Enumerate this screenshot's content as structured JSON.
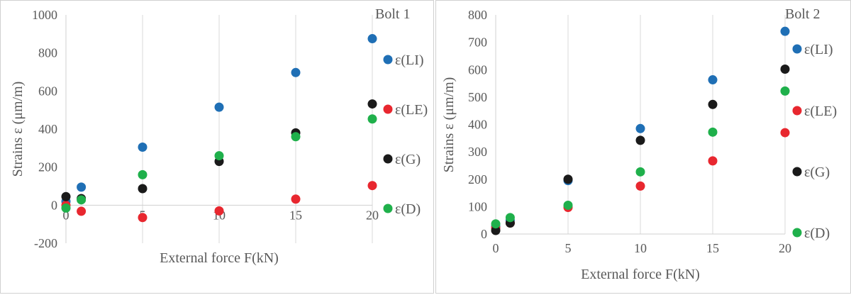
{
  "chart_data": [
    {
      "type": "scatter",
      "title": "Bolt 1",
      "xlabel": "External force F(kN)",
      "ylabel": "Strains ε (μm/m)",
      "x_ticks": [
        0,
        5,
        10,
        15,
        20
      ],
      "y_ticks": [
        -200,
        0,
        200,
        400,
        600,
        800,
        1000
      ],
      "xlim": [
        0,
        20
      ],
      "ylim": [
        -200,
        1000
      ],
      "grid": "vertical",
      "legend_position": "right",
      "series": [
        {
          "name": "ε(LI)",
          "color": "#1f6fb5",
          "points": [
            [
              0,
              20
            ],
            [
              1,
              95
            ],
            [
              5,
              305
            ],
            [
              10,
              515
            ],
            [
              15,
              697
            ],
            [
              20,
              875
            ]
          ]
        },
        {
          "name": "ε(LE)",
          "color": "#e8272f",
          "points": [
            [
              0,
              0
            ],
            [
              1,
              -32
            ],
            [
              5,
              -65
            ],
            [
              10,
              -30
            ],
            [
              15,
              32
            ],
            [
              20,
              103
            ]
          ]
        },
        {
          "name": "ε(G)",
          "color": "#1a1a1a",
          "points": [
            [
              0,
              45
            ],
            [
              1,
              35
            ],
            [
              5,
              87
            ],
            [
              10,
              230
            ],
            [
              15,
              380
            ],
            [
              20,
              532
            ]
          ]
        },
        {
          "name": "ε(D)",
          "color": "#1fb04b",
          "points": [
            [
              0,
              -15
            ],
            [
              1,
              28
            ],
            [
              5,
              160
            ],
            [
              10,
              260
            ],
            [
              15,
              360
            ],
            [
              20,
              453
            ]
          ]
        }
      ]
    },
    {
      "type": "scatter",
      "title": "Bolt 2",
      "xlabel": "External force F(kN)",
      "ylabel": "Strains ε (μm/m)",
      "x_ticks": [
        0,
        5,
        10,
        15,
        20
      ],
      "y_ticks": [
        0,
        100,
        200,
        300,
        400,
        500,
        600,
        700,
        800
      ],
      "xlim": [
        0,
        20
      ],
      "ylim": [
        0,
        800
      ],
      "grid": "vertical",
      "legend_position": "right",
      "series": [
        {
          "name": "ε(LI)",
          "color": "#1f6fb5",
          "points": [
            [
              0,
              28
            ],
            [
              1,
              50
            ],
            [
              5,
              195
            ],
            [
              10,
              385
            ],
            [
              15,
              563
            ],
            [
              20,
              740
            ]
          ]
        },
        {
          "name": "ε(LE)",
          "color": "#e8272f",
          "points": [
            [
              0,
              22
            ],
            [
              1,
              40
            ],
            [
              5,
              97
            ],
            [
              10,
              175
            ],
            [
              15,
              267
            ],
            [
              20,
              370
            ]
          ]
        },
        {
          "name": "ε(G)",
          "color": "#1a1a1a",
          "points": [
            [
              0,
              13
            ],
            [
              1,
              40
            ],
            [
              5,
              200
            ],
            [
              10,
              342
            ],
            [
              15,
              473
            ],
            [
              20,
              602
            ]
          ]
        },
        {
          "name": "ε(D)",
          "color": "#1fb04b",
          "points": [
            [
              0,
              37
            ],
            [
              1,
              60
            ],
            [
              5,
              105
            ],
            [
              10,
              227
            ],
            [
              15,
              372
            ],
            [
              20,
              522
            ]
          ]
        }
      ]
    }
  ]
}
